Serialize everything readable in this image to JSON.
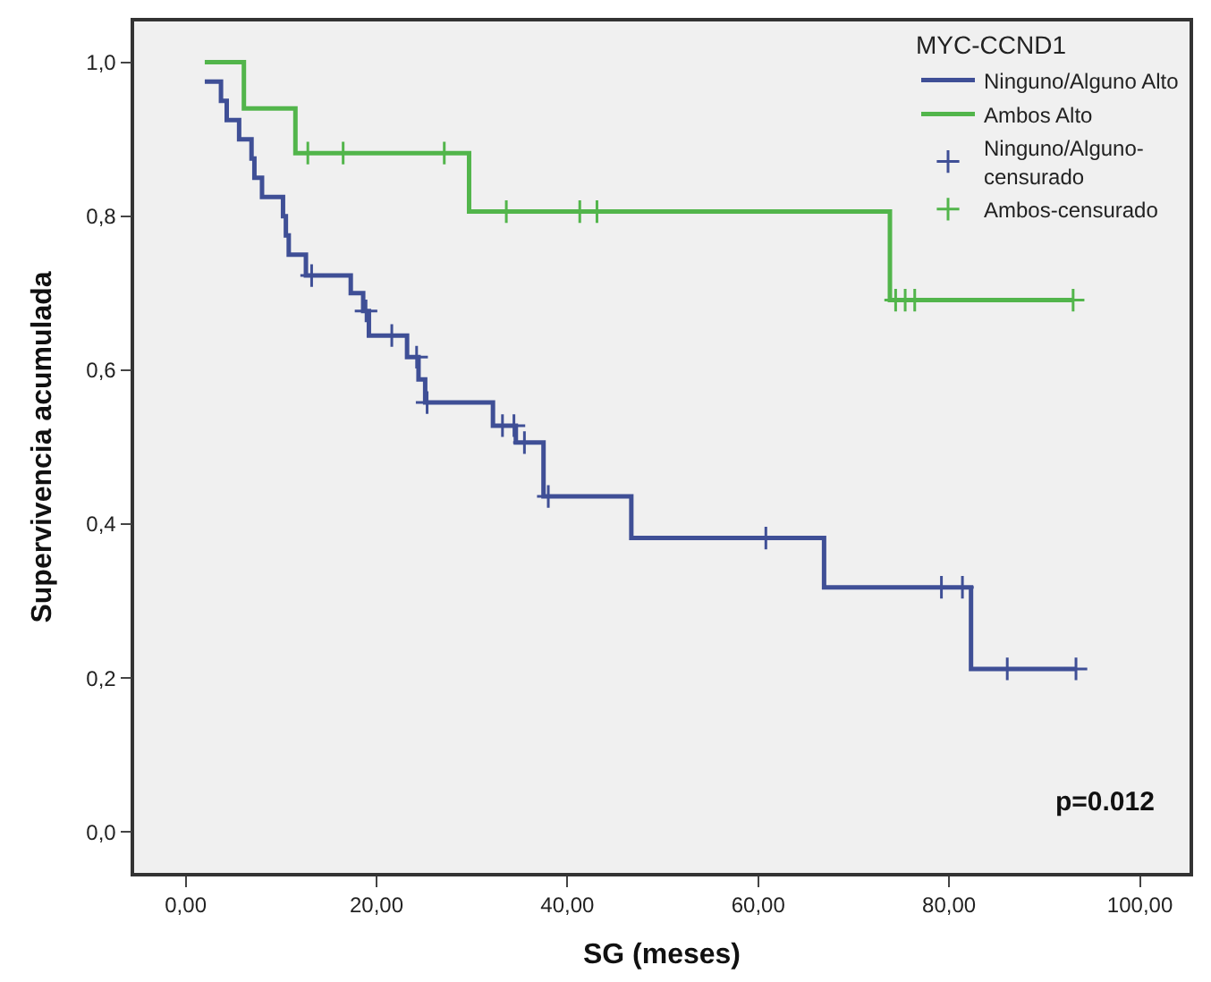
{
  "chart_data": {
    "type": "step",
    "xlabel": "SG (meses)",
    "ylabel": "Supervivencia acumulada",
    "legend_title": "MYC-CCND1",
    "legend": "top right",
    "grid": false,
    "xlim": [
      -5.4,
      105.2
    ],
    "ylim": [
      -0.053,
      1.053
    ],
    "xticks": [
      {
        "value": 0,
        "label": "0,00"
      },
      {
        "value": 20,
        "label": "20,00"
      },
      {
        "value": 40,
        "label": "40,00"
      },
      {
        "value": 60,
        "label": "60,00"
      },
      {
        "value": 80,
        "label": "80,00"
      },
      {
        "value": 100,
        "label": "100,00"
      }
    ],
    "yticks": [
      {
        "value": 0,
        "label": "0,0"
      },
      {
        "value": 0.2,
        "label": "0,2"
      },
      {
        "value": 0.4,
        "label": "0,4"
      },
      {
        "value": 0.6,
        "label": "0,6"
      },
      {
        "value": 0.8,
        "label": "0,8"
      },
      {
        "value": 1.0,
        "label": "1,0"
      }
    ],
    "series": [
      {
        "name": "Ninguno/Alguno Alto",
        "color": "#3f4f96",
        "x": [
          2.0,
          3.7,
          4.3,
          5.6,
          6.9,
          7.2,
          8.0,
          10.2,
          10.5,
          10.8,
          12.6,
          17.3,
          18.6,
          19.2,
          23.2,
          24.4,
          25.1,
          32.2,
          34.6,
          37.5,
          46.7,
          66.9,
          82.3,
          93.3
        ],
        "values": [
          0.975,
          0.95,
          0.925,
          0.9,
          0.875,
          0.85,
          0.825,
          0.8,
          0.775,
          0.75,
          0.723,
          0.7,
          0.677,
          0.645,
          0.617,
          0.588,
          0.558,
          0.528,
          0.506,
          0.436,
          0.382,
          0.318,
          0.212,
          0.212
        ]
      },
      {
        "name": "Ambos Alto",
        "color": "#52b54b",
        "x": [
          2.0,
          6.1,
          11.5,
          29.7,
          73.8,
          93.0
        ],
        "values": [
          1.0,
          0.94,
          0.882,
          0.806,
          0.691,
          0.691
        ]
      },
      {
        "name": "Ninguno/Alguno-\ncensurado",
        "color": "#3f4f96",
        "type": "scatter",
        "marker": "cross",
        "x": [
          13.2,
          18.9,
          21.6,
          24.2,
          25.3,
          33.2,
          34.4,
          35.5,
          38.0,
          60.8,
          79.2,
          81.4,
          86.1,
          93.3
        ],
        "values": [
          0.723,
          0.677,
          0.645,
          0.617,
          0.558,
          0.528,
          0.528,
          0.506,
          0.436,
          0.382,
          0.318,
          0.318,
          0.212,
          0.212
        ]
      },
      {
        "name": "Ambos-censurado",
        "color": "#52b54b",
        "type": "scatter",
        "marker": "cross",
        "x": [
          12.8,
          16.5,
          27.1,
          33.6,
          41.3,
          43.1,
          74.4,
          75.4,
          76.4,
          93.0
        ],
        "values": [
          0.882,
          0.882,
          0.882,
          0.806,
          0.806,
          0.806,
          0.691,
          0.691,
          0.691,
          0.691
        ]
      }
    ],
    "annotations": [
      "p=0.012"
    ]
  }
}
